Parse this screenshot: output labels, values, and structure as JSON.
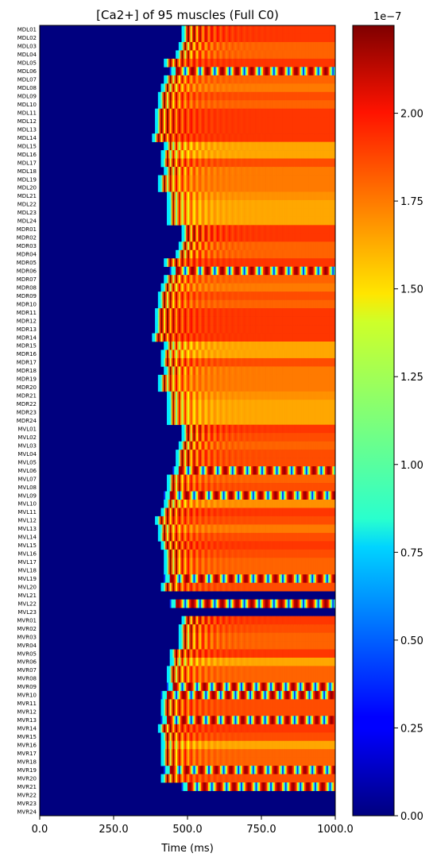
{
  "chart_data": {
    "type": "heatmap",
    "title": "[Ca2+] of 95 muscles (Full C0)",
    "xlabel": "Time (ms)",
    "xlim": [
      0,
      1000
    ],
    "x_ticks": [
      0,
      250,
      500,
      750,
      1000
    ],
    "x_tick_labels": [
      "0.0",
      "250.0",
      "500.0",
      "750.0",
      "1000.0"
    ],
    "colormap": "jet",
    "colorbar": {
      "range": [
        0,
        2.25e-07
      ],
      "ticks": [
        0,
        0.25,
        0.5,
        0.75,
        1.0,
        1.25,
        1.5,
        1.75,
        2.0
      ],
      "tick_labels": [
        "0.00",
        "0.25",
        "0.50",
        "0.75",
        "1.00",
        "1.25",
        "1.50",
        "1.75",
        "2.00"
      ],
      "offset_label": "1e−7"
    },
    "rows": [
      "MDL01",
      "MDL02",
      "MDL03",
      "MDL04",
      "MDL05",
      "MDL06",
      "MDL07",
      "MDL08",
      "MDL09",
      "MDL10",
      "MDL11",
      "MDL12",
      "MDL13",
      "MDL14",
      "MDL15",
      "MDL16",
      "MDL17",
      "MDL18",
      "MDL19",
      "MDL20",
      "MDL21",
      "MDL22",
      "MDL23",
      "MDL24",
      "MDR01",
      "MDR02",
      "MDR03",
      "MDR04",
      "MDR05",
      "MDR06",
      "MDR07",
      "MDR08",
      "MDR09",
      "MDR10",
      "MDR11",
      "MDR12",
      "MDR13",
      "MDR14",
      "MDR15",
      "MDR16",
      "MDR17",
      "MDR18",
      "MDR19",
      "MDR20",
      "MDR21",
      "MDR22",
      "MDR23",
      "MDR24",
      "MVL01",
      "MVL02",
      "MVL03",
      "MVL04",
      "MVL05",
      "MVL06",
      "MVL07",
      "MVL08",
      "MVL09",
      "MVL10",
      "MVL11",
      "MVL12",
      "MVL13",
      "MVL14",
      "MVL15",
      "MVL16",
      "MVL17",
      "MVL18",
      "MVL19",
      "MVL20",
      "MVL21",
      "MVL22",
      "MVL23",
      "MVR01",
      "MVR02",
      "MVR03",
      "MVR04",
      "MVR05",
      "MVR06",
      "MVR07",
      "MVR08",
      "MVR09",
      "MVR10",
      "MVR11",
      "MVR12",
      "MVR13",
      "MVR14",
      "MVR15",
      "MVR16",
      "MVR17",
      "MVR18",
      "MVR19",
      "MVR20",
      "MVR21",
      "MVR22",
      "MVR23",
      "MVR24"
    ],
    "onset_ms": [
      480,
      480,
      470,
      460,
      420,
      440,
      420,
      410,
      400,
      400,
      390,
      390,
      390,
      380,
      420,
      410,
      410,
      420,
      400,
      400,
      430,
      430,
      430,
      430,
      480,
      480,
      470,
      460,
      420,
      440,
      420,
      410,
      400,
      400,
      390,
      390,
      390,
      380,
      420,
      410,
      410,
      420,
      400,
      400,
      430,
      430,
      430,
      430,
      480,
      480,
      470,
      460,
      460,
      450,
      430,
      430,
      420,
      420,
      410,
      390,
      400,
      400,
      410,
      420,
      420,
      420,
      420,
      410,
      null,
      440,
      null,
      480,
      470,
      470,
      470,
      440,
      440,
      430,
      430,
      430,
      410,
      410,
      410,
      410,
      400,
      410,
      410,
      410,
      410,
      420,
      410,
      480,
      null,
      null,
      null
    ],
    "steady_level_1e-7": [
      1.85,
      1.85,
      1.75,
      1.75,
      1.85,
      1.6,
      1.75,
      1.7,
      1.8,
      1.75,
      1.85,
      1.85,
      1.85,
      1.85,
      1.6,
      1.6,
      1.8,
      1.7,
      1.7,
      1.7,
      1.65,
      1.6,
      1.6,
      1.6,
      1.85,
      1.85,
      1.75,
      1.75,
      1.85,
      1.6,
      1.75,
      1.7,
      1.8,
      1.75,
      1.85,
      1.85,
      1.85,
      1.85,
      1.6,
      1.6,
      1.8,
      1.7,
      1.7,
      1.7,
      1.65,
      1.6,
      1.6,
      1.6,
      1.85,
      1.8,
      1.75,
      1.8,
      1.8,
      1.55,
      1.75,
      1.8,
      1.5,
      1.65,
      1.85,
      1.8,
      1.7,
      1.8,
      1.85,
      1.8,
      1.75,
      1.75,
      1.4,
      1.8,
      0,
      1.2,
      0,
      1.85,
      1.8,
      1.75,
      1.75,
      1.85,
      1.6,
      1.75,
      1.75,
      1.4,
      1.4,
      1.8,
      1.8,
      1.5,
      1.85,
      1.8,
      1.6,
      1.75,
      1.75,
      1.2,
      1.8,
      1.2,
      0,
      0,
      0
    ],
    "oscillating_rows": [
      "MDL06",
      "MDR06",
      "MVL06",
      "MVL09",
      "MVL19",
      "MVL22",
      "MVR09",
      "MVR10",
      "MVR13",
      "MVR19",
      "MVR21"
    ]
  }
}
